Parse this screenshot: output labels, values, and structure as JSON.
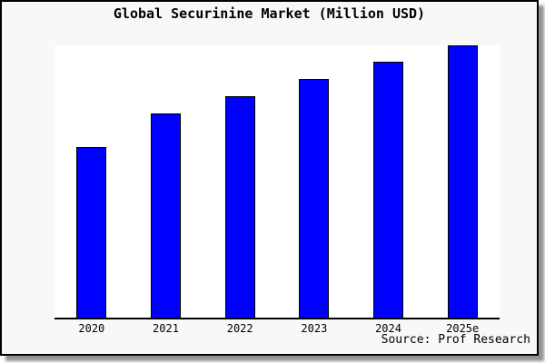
{
  "page": {
    "kind": "static bar chart image"
  },
  "colors": {
    "bar_fill": "#0000ff",
    "bar_border": "#000000",
    "frame_background": "#f8f8f8",
    "plot_background": "#ffffff",
    "axis": "#000000",
    "frame_border": "#000000",
    "text": "#000000"
  },
  "chart_data": {
    "type": "bar",
    "title": "Global Securinine Market (Million USD)",
    "categories": [
      "2020",
      "2021",
      "2022",
      "2023",
      "2024",
      "2025e"
    ],
    "values": [
      62.7,
      75.0,
      81.3,
      87.7,
      94.0,
      100.0
    ],
    "values_note": "relative bar heights (index, tallest = 100); chart displays no y-axis scale or data labels",
    "xlabel": "",
    "ylabel": "",
    "ylim": [
      0,
      100
    ],
    "grid": false,
    "legend": "none",
    "y_axis_shown": false,
    "source_note": "Source: Prof Research"
  }
}
